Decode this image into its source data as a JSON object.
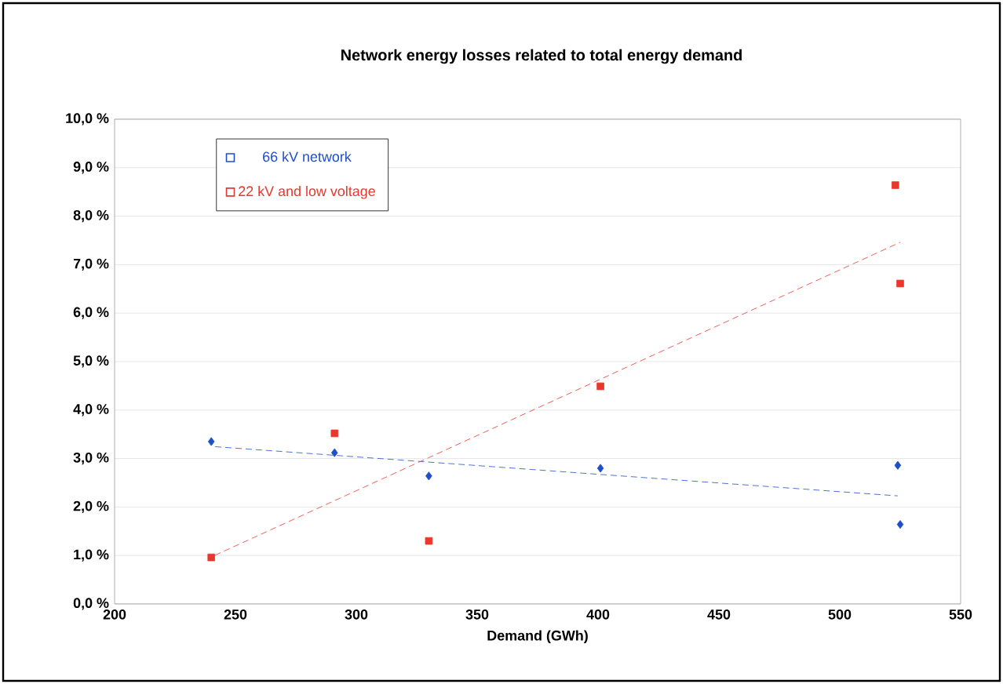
{
  "chart_data": {
    "type": "scatter",
    "title": "Network energy losses related to total energy demand",
    "xlabel": "Demand (GWh)",
    "xlim": [
      200,
      550
    ],
    "xticks": [
      200,
      250,
      300,
      350,
      400,
      450,
      500,
      550
    ],
    "ylim": [
      0,
      10
    ],
    "yticks": [
      {
        "value": 0,
        "label": "0,0 %"
      },
      {
        "value": 1,
        "label": "1,0 %"
      },
      {
        "value": 2,
        "label": "2,0 %"
      },
      {
        "value": 3,
        "label": "3,0 %"
      },
      {
        "value": 4,
        "label": "4,0 %"
      },
      {
        "value": 5,
        "label": "5,0 %"
      },
      {
        "value": 6,
        "label": "6,0 %"
      },
      {
        "value": 7,
        "label": "7,0 %"
      },
      {
        "value": 8,
        "label": "8,0 %"
      },
      {
        "value": 9,
        "label": "9,0 %"
      },
      {
        "value": 10,
        "label": "10,0 %"
      }
    ],
    "grid": "y",
    "legend": "top left",
    "series": [
      {
        "name": "66 kV network",
        "color": "#1f4fc8",
        "marker": "diamond",
        "x": [
          240,
          291,
          330,
          401,
          524,
          525
        ],
        "values": [
          3.35,
          3.12,
          2.64,
          2.8,
          2.86,
          1.64
        ]
      },
      {
        "name": "22 kV and low voltage",
        "color": "#e8372c",
        "marker": "square",
        "x": [
          240,
          291,
          330,
          401,
          523,
          525
        ],
        "values": [
          0.96,
          3.52,
          1.3,
          4.49,
          8.64,
          6.61
        ]
      },
      {
        "type": "line",
        "color": "#1f4fc8",
        "line_style": "dashed",
        "marker": "none",
        "x": [
          240,
          524
        ],
        "values": [
          3.25,
          2.23
        ]
      },
      {
        "type": "line",
        "color": "#e8372c",
        "line_style": "dashed",
        "marker": "none",
        "x": [
          240,
          525
        ],
        "values": [
          0.97,
          7.46
        ]
      }
    ]
  }
}
